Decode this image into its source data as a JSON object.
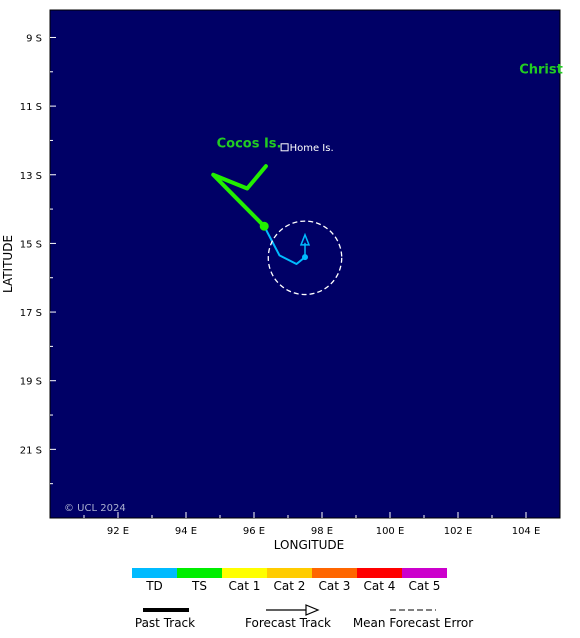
{
  "map": {
    "background_color": "#000066",
    "lon_range": [
      90,
      105
    ],
    "lat_range": [
      8.2,
      23.0
    ],
    "lon_ticks": [
      {
        "value": 92,
        "label": "92 E"
      },
      {
        "value": 94,
        "label": "94 E"
      },
      {
        "value": 96,
        "label": "96 E"
      },
      {
        "value": 98,
        "label": "98 E"
      },
      {
        "value": 100,
        "label": "100 E"
      },
      {
        "value": 102,
        "label": "102 E"
      },
      {
        "value": 104,
        "label": "104 E"
      }
    ],
    "lat_ticks": [
      {
        "value": 9,
        "label": "9 S"
      },
      {
        "value": 11,
        "label": "11 S"
      },
      {
        "value": 13,
        "label": "13 S"
      },
      {
        "value": 15,
        "label": "15 S"
      },
      {
        "value": 17,
        "label": "17 S"
      },
      {
        "value": 19,
        "label": "19 S"
      },
      {
        "value": 21,
        "label": "21 S"
      }
    ],
    "xlabel": "LONGITUDE",
    "ylabel": "LATITUDE",
    "copyright": "© UCL 2024",
    "places": [
      {
        "name": "Cocos Is.",
        "lon": 94.9,
        "lat": 12.2,
        "style": "green"
      },
      {
        "name": "Home Is.",
        "lon": 96.9,
        "lat": 12.2,
        "style": "white",
        "marker": true
      },
      {
        "name": "Christ",
        "lon": 103.8,
        "lat": 10.05,
        "style": "green"
      }
    ]
  },
  "storm": {
    "past_track_ts": [
      {
        "lon": 96.35,
        "lat": 12.75
      },
      {
        "lon": 95.8,
        "lat": 13.4
      },
      {
        "lon": 94.8,
        "lat": 13.0
      },
      {
        "lon": 95.5,
        "lat": 13.7
      },
      {
        "lon": 96.3,
        "lat": 14.5
      }
    ],
    "past_track_td": [
      {
        "lon": 96.3,
        "lat": 14.5
      },
      {
        "lon": 96.75,
        "lat": 15.35
      },
      {
        "lon": 97.25,
        "lat": 15.6
      },
      {
        "lon": 97.5,
        "lat": 15.4
      }
    ],
    "ts_point": {
      "lon": 96.3,
      "lat": 14.5
    },
    "current_position": {
      "lon": 97.5,
      "lat": 15.4
    },
    "forecast_arrow_tip": {
      "lon": 97.5,
      "lat": 14.75
    },
    "error_circle_center": {
      "lon": 97.5,
      "lat": 15.42
    },
    "error_circle_radius_deg": 1.08,
    "td_color": "#00bbff",
    "ts_color": "#22ee00"
  },
  "legend": {
    "categories": [
      {
        "label": "TD",
        "color": "#00bbff"
      },
      {
        "label": "TS",
        "color": "#00ee00"
      },
      {
        "label": "Cat 1",
        "color": "#ffff00"
      },
      {
        "label": "Cat 2",
        "color": "#ffcc00"
      },
      {
        "label": "Cat 3",
        "color": "#ff6600"
      },
      {
        "label": "Cat 4",
        "color": "#ff0000"
      },
      {
        "label": "Cat 5",
        "color": "#cc00cc"
      }
    ],
    "past_track_label": "Past Track",
    "forecast_track_label": "Forecast Track",
    "mean_error_label": "Mean Forecast Error"
  }
}
